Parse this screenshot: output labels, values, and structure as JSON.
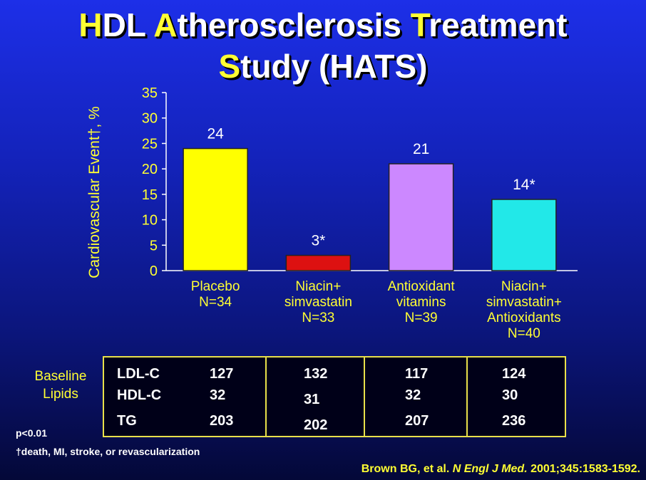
{
  "title": {
    "line1": [
      {
        "cap": "H",
        "rest": "DL "
      },
      {
        "cap": "A",
        "rest": "therosclerosis "
      },
      {
        "cap": "T",
        "rest": "reatment"
      }
    ],
    "line2": [
      {
        "cap": "S",
        "rest": "tudy (HATS)"
      }
    ]
  },
  "chart_data": {
    "type": "bar",
    "ylabel": "Cardiovascular Event†, %",
    "ylim": [
      0,
      35
    ],
    "yticks": [
      "0",
      "5",
      "10",
      "15",
      "20",
      "25",
      "30",
      "35"
    ],
    "categories": [
      [
        "Placebo",
        "N=34"
      ],
      [
        "Niacin+",
        "simvastatin",
        "N=33"
      ],
      [
        "Antioxidant",
        "vitamins",
        "N=39"
      ],
      [
        "Niacin+",
        "simvastatin+",
        "Antioxidants",
        "N=40"
      ]
    ],
    "values": [
      24,
      3,
      21,
      14
    ],
    "data_labels": [
      "24",
      "3*",
      "21",
      "14*"
    ],
    "bar_colors": [
      "#ffff00",
      "#dd1111",
      "#cc88ff",
      "#22e8e8"
    ],
    "grid": false
  },
  "lipids": {
    "label_line1": "Baseline",
    "label_line2": "Lipids",
    "row_names": [
      "LDL-C",
      "HDL-C",
      "TG"
    ],
    "columns": [
      [
        "127",
        "32",
        "203"
      ],
      [
        "132",
        "31",
        "202"
      ],
      [
        "117",
        "32",
        "207"
      ],
      [
        "124",
        "30",
        "236"
      ]
    ]
  },
  "notes": {
    "p_value": "p<0.01",
    "footnote": "†death, MI, stroke, or revascularization"
  },
  "citation": {
    "authors": "Brown BG, et al. ",
    "journal": "N Engl J Med.",
    "details": " 2001;345:1583-1592."
  }
}
